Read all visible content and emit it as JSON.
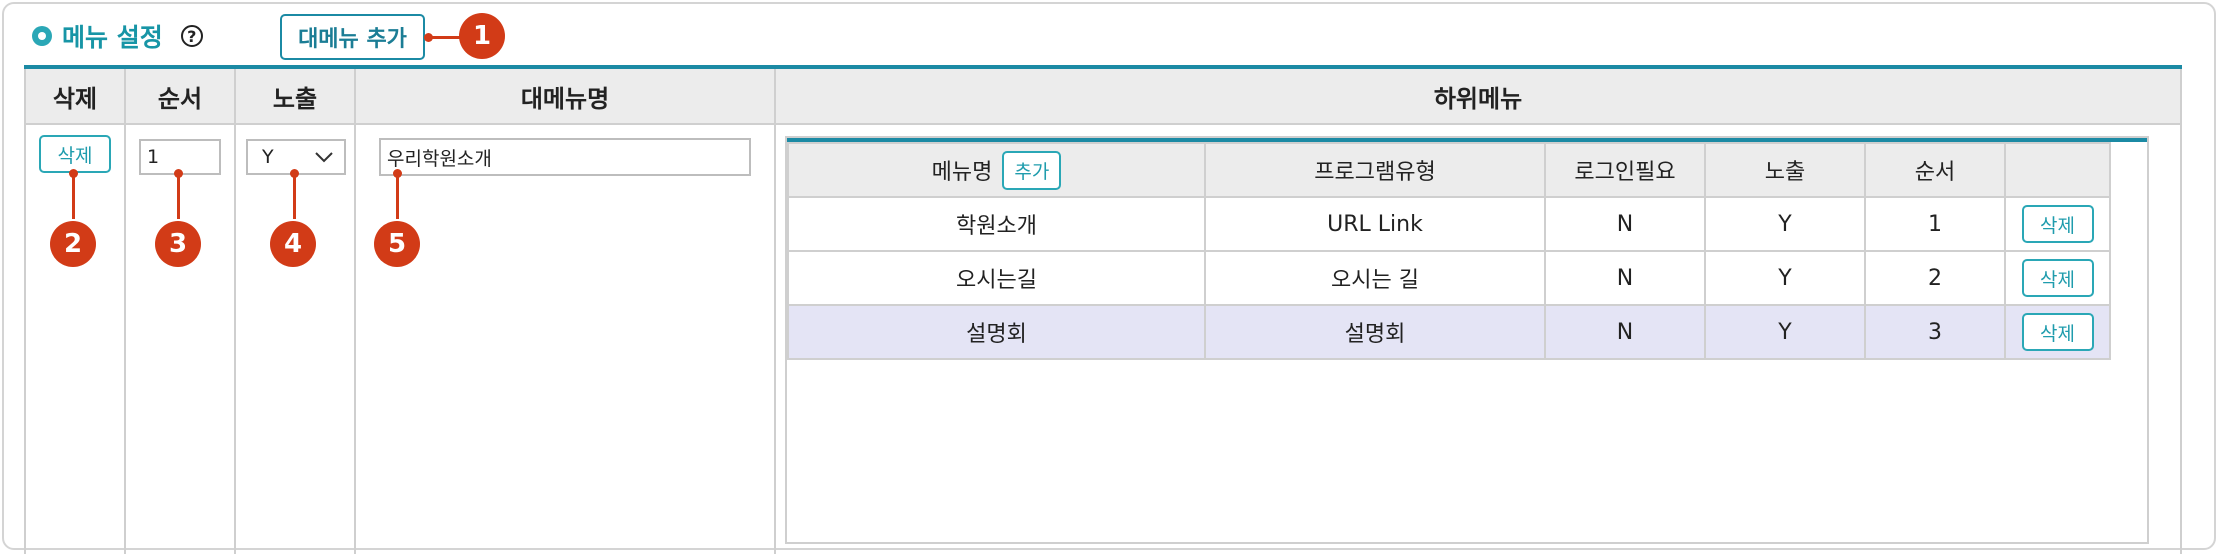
{
  "header": {
    "title": "메뉴 설정",
    "help_glyph": "?",
    "add_main_label": "대메뉴 추가"
  },
  "columns": {
    "delete": "삭제",
    "order": "순서",
    "visible": "노출",
    "main_name": "대메뉴명",
    "sub_menu": "하위메뉴"
  },
  "main_row": {
    "delete_label": "삭제",
    "order_value": "1",
    "visible_value": "Y",
    "name_value": "우리학원소개"
  },
  "sub_table": {
    "headers": {
      "name": "메뉴명",
      "add_label": "추가",
      "program_type": "프로그램유형",
      "login_required": "로그인필요",
      "visible": "노출",
      "order": "순서"
    },
    "rows": [
      {
        "name": "학원소개",
        "program_type": "URL Link",
        "login": "N",
        "visible": "Y",
        "order": "1",
        "delete": "삭제"
      },
      {
        "name": "오시는길",
        "program_type": "오시는 길",
        "login": "N",
        "visible": "Y",
        "order": "2",
        "delete": "삭제"
      },
      {
        "name": "설명회",
        "program_type": "설명회",
        "login": "N",
        "visible": "Y",
        "order": "3",
        "delete": "삭제",
        "highlighted": true
      }
    ]
  },
  "callouts": [
    "1",
    "2",
    "3",
    "4",
    "5"
  ],
  "colors": {
    "accent": "#1b8aa4",
    "title": "#1795a6",
    "callout": "#d23b17",
    "highlight_row": "#e4e4f5",
    "header_bg": "#ececec"
  },
  "icons": [
    "bullet-circle-icon",
    "help-circle-icon",
    "chevron-down-icon"
  ]
}
